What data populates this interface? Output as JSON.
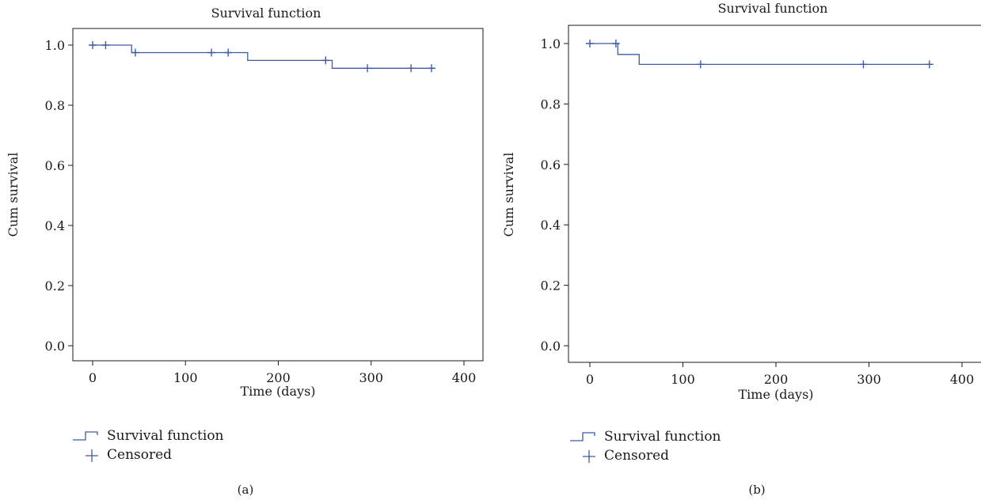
{
  "colors": {
    "series": "#3d5ba8",
    "axis": "#1a1a1a"
  },
  "chart_data": [
    {
      "type": "line",
      "subtype": "kaplan-meier step",
      "title": "Survival function",
      "xlabel": "Time (days)",
      "ylabel": "Cum survival",
      "xlim": [
        0,
        400
      ],
      "ylim": [
        0.0,
        1.0
      ],
      "xticks": [
        "0",
        "100",
        "200",
        "300",
        "400"
      ],
      "yticks": [
        "0.0",
        "0.2",
        "0.4",
        "0.6",
        "0.8",
        "1.0"
      ],
      "grid": false,
      "legend": [
        "Survival function",
        "Censored"
      ],
      "legend_position": "bottom-left",
      "series": [
        {
          "name": "Survival function",
          "steps": [
            [
              0,
              1.0
            ],
            [
              42,
              1.0
            ],
            [
              42,
              0.975
            ],
            [
              167,
              0.975
            ],
            [
              167,
              0.949
            ],
            [
              258,
              0.949
            ],
            [
              258,
              0.923
            ],
            [
              365,
              0.923
            ]
          ]
        },
        {
          "name": "Censored",
          "points": [
            [
              0,
              1.0
            ],
            [
              14,
              1.0
            ],
            [
              46,
              0.975
            ],
            [
              128,
              0.975
            ],
            [
              146,
              0.975
            ],
            [
              251,
              0.949
            ],
            [
              296,
              0.923
            ],
            [
              343,
              0.923
            ],
            [
              365,
              0.923
            ]
          ]
        }
      ],
      "panel_label": "(a)"
    },
    {
      "type": "line",
      "subtype": "kaplan-meier step",
      "title": "Survival function",
      "xlabel": "Time (days)",
      "ylabel": "Cum survival",
      "xlim": [
        0,
        400
      ],
      "ylim": [
        0.0,
        1.0
      ],
      "xticks": [
        "0",
        "100",
        "200",
        "300",
        "400"
      ],
      "yticks": [
        "0.0",
        "0.2",
        "0.4",
        "0.6",
        "0.8",
        "1.0"
      ],
      "grid": false,
      "legend": [
        "Survival function",
        "Censored"
      ],
      "legend_position": "bottom-left",
      "series": [
        {
          "name": "Survival function",
          "steps": [
            [
              0,
              1.0
            ],
            [
              30,
              1.0
            ],
            [
              30,
              0.964
            ],
            [
              53,
              0.964
            ],
            [
              53,
              0.931
            ],
            [
              365,
              0.931
            ]
          ]
        },
        {
          "name": "Censored",
          "points": [
            [
              0,
              1.0
            ],
            [
              28,
              1.0
            ],
            [
              119,
              0.931
            ],
            [
              294,
              0.931
            ],
            [
              365,
              0.931
            ]
          ]
        }
      ],
      "panel_label": "(b)"
    }
  ]
}
